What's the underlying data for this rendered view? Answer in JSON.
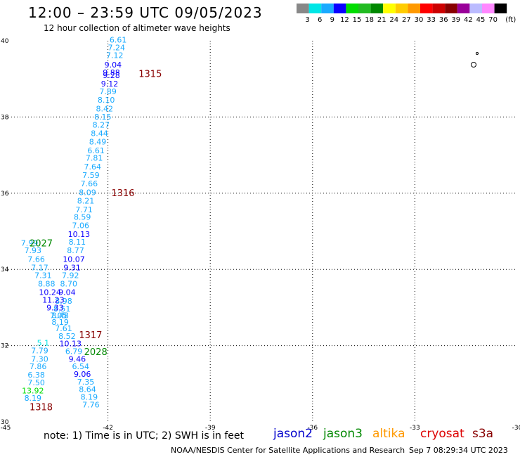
{
  "header": {
    "title": "12:00 – 23:59 UTC 09/05/2023",
    "subtitle": "12 hour collection of altimeter wave heights"
  },
  "colorbar": {
    "labels": [
      "3",
      "6",
      "9",
      "12",
      "15",
      "18",
      "21",
      "24",
      "27",
      "30",
      "33",
      "36",
      "39",
      "42",
      "45",
      "70",
      "(ft)"
    ],
    "colors": [
      "#888888",
      "#00e6e6",
      "#19aaff",
      "#0a00ff",
      "#00dd00",
      "#22bb22",
      "#008800",
      "#ffff00",
      "#ffcc00",
      "#ff9900",
      "#ff0000",
      "#cc0000",
      "#880000",
      "#990099",
      "#bbbbff",
      "#ff88ff",
      "#000000"
    ]
  },
  "chart_data": {
    "type": "scatter",
    "xlim": [
      -45,
      -30
    ],
    "ylim": [
      30,
      40
    ],
    "x_ticks": [
      "-45",
      "-42",
      "-39",
      "-36",
      "-33",
      "-30"
    ],
    "y_ticks": [
      "30",
      "32",
      "34",
      "36",
      "38",
      "40"
    ],
    "grid": true,
    "track_color_scale": [
      {
        "max": 3,
        "color": "#888888"
      },
      {
        "max": 6,
        "color": "#00e6e6"
      },
      {
        "max": 9,
        "color": "#19aaff"
      },
      {
        "max": 12,
        "color": "#0a00ff"
      },
      {
        "max": 15,
        "color": "#00dd00"
      },
      {
        "max": 18,
        "color": "#22bb22"
      }
    ],
    "tracks": [
      {
        "label": "1315",
        "label_lon": -41.1,
        "label_lat": 39.05,
        "label_color": "#880000",
        "points": [
          {
            "lon": -41.7,
            "lat": 39.95,
            "v": "6.61"
          },
          {
            "lon": -41.75,
            "lat": 39.75,
            "v": "7.24"
          },
          {
            "lon": -41.8,
            "lat": 39.55,
            "v": "7.12"
          },
          {
            "lon": -41.85,
            "lat": 39.3,
            "v": "9.04"
          },
          {
            "lon": -41.9,
            "lat": 39.1,
            "v": "9.88"
          },
          {
            "lon": -41.9,
            "lat": 39.02,
            "v": "9.28"
          },
          {
            "lon": -41.95,
            "lat": 38.8,
            "v": "9.12"
          },
          {
            "lon": -42.0,
            "lat": 38.6,
            "v": "7.89"
          },
          {
            "lon": -42.05,
            "lat": 38.38,
            "v": "8.10"
          },
          {
            "lon": -42.1,
            "lat": 38.15,
            "v": "8.42"
          },
          {
            "lon": -42.15,
            "lat": 37.93,
            "v": "8.15"
          },
          {
            "lon": -42.2,
            "lat": 37.72,
            "v": "8.27"
          },
          {
            "lon": -42.25,
            "lat": 37.5,
            "v": "8.44"
          },
          {
            "lon": -42.3,
            "lat": 37.28,
            "v": "8.49"
          },
          {
            "lon": -42.35,
            "lat": 37.05,
            "v": "6.61"
          },
          {
            "lon": -42.4,
            "lat": 36.85,
            "v": "7.81"
          },
          {
            "lon": -42.45,
            "lat": 36.62,
            "v": "7.64"
          },
          {
            "lon": -42.5,
            "lat": 36.4,
            "v": "7.59"
          },
          {
            "lon": -42.55,
            "lat": 36.18,
            "v": "7.66"
          }
        ]
      },
      {
        "label": "1316",
        "label_lon": -41.9,
        "label_lat": 35.92,
        "label_color": "#880000",
        "points": [
          {
            "lon": -42.6,
            "lat": 35.95,
            "v": "8.09"
          },
          {
            "lon": -42.65,
            "lat": 35.73,
            "v": "8.21"
          },
          {
            "lon": -42.7,
            "lat": 35.5,
            "v": "7.71"
          },
          {
            "lon": -42.75,
            "lat": 35.3,
            "v": "8.59"
          },
          {
            "lon": -42.8,
            "lat": 35.08,
            "v": "7.06"
          },
          {
            "lon": -42.85,
            "lat": 34.85,
            "v": "10.13"
          },
          {
            "lon": -42.9,
            "lat": 34.65,
            "v": "8.11"
          },
          {
            "lon": -42.95,
            "lat": 34.43,
            "v": "8.77"
          },
          {
            "lon": -43.0,
            "lat": 34.2,
            "v": "10.07"
          },
          {
            "lon": -43.05,
            "lat": 33.98,
            "v": "9.31"
          },
          {
            "lon": -43.1,
            "lat": 33.77,
            "v": "7.92"
          },
          {
            "lon": -43.15,
            "lat": 33.55,
            "v": "8.70"
          },
          {
            "lon": -43.2,
            "lat": 33.33,
            "v": "9.04"
          },
          {
            "lon": -43.3,
            "lat": 33.1,
            "v": "8.98"
          },
          {
            "lon": -43.35,
            "lat": 32.9,
            "v": "8.51"
          },
          {
            "lon": -43.4,
            "lat": 32.72,
            "v": "8.48"
          }
        ]
      },
      {
        "label": "2027",
        "label_lon": -44.3,
        "label_lat": 34.6,
        "label_color": "#008800",
        "points": [
          {
            "lon": -44.3,
            "lat": 34.62,
            "v": "7.99"
          },
          {
            "lon": -44.2,
            "lat": 34.43,
            "v": "7.93"
          },
          {
            "lon": -44.1,
            "lat": 34.2,
            "v": "7.66"
          },
          {
            "lon": -44.0,
            "lat": 33.98,
            "v": "7.17"
          },
          {
            "lon": -43.9,
            "lat": 33.77,
            "v": "7.31"
          },
          {
            "lon": -43.8,
            "lat": 33.55,
            "v": "8.88"
          },
          {
            "lon": -43.7,
            "lat": 33.33,
            "v": "10.24"
          },
          {
            "lon": -43.6,
            "lat": 33.13,
            "v": "11.23"
          },
          {
            "lon": -43.55,
            "lat": 32.92,
            "v": "9.33"
          },
          {
            "lon": -43.45,
            "lat": 32.72,
            "v": "7.05"
          },
          {
            "lon": -43.4,
            "lat": 32.55,
            "v": "8.19"
          },
          {
            "lon": -43.3,
            "lat": 32.38,
            "v": "7.61"
          },
          {
            "lon": -43.2,
            "lat": 32.18,
            "v": "8.52"
          },
          {
            "lon": -43.1,
            "lat": 31.98,
            "v": "10.13"
          },
          {
            "lon": -43.0,
            "lat": 31.78,
            "v": "6.79"
          },
          {
            "lon": -42.9,
            "lat": 31.58,
            "v": "9.46"
          },
          {
            "lon": -42.8,
            "lat": 31.38,
            "v": "6.54"
          },
          {
            "lon": -42.75,
            "lat": 31.18,
            "v": "9.06"
          },
          {
            "lon": -42.65,
            "lat": 30.98,
            "v": "7.35"
          },
          {
            "lon": -42.6,
            "lat": 30.78,
            "v": "8.64"
          },
          {
            "lon": -42.55,
            "lat": 30.58,
            "v": "8.19"
          },
          {
            "lon": -42.5,
            "lat": 30.38,
            "v": "7.76"
          }
        ]
      },
      {
        "label": "1317",
        "label_lon": -42.85,
        "label_lat": 32.2,
        "label_color": "#880000",
        "points": []
      },
      {
        "label": "2028",
        "label_lon": -42.7,
        "label_lat": 31.75,
        "label_color": "#008800",
        "points": []
      },
      {
        "label": "1318",
        "label_lon": -44.3,
        "label_lat": 30.3,
        "label_color": "#880000",
        "points": [
          {
            "lon": -43.9,
            "lat": 32.0,
            "v": "5.1"
          },
          {
            "lon": -44.0,
            "lat": 31.8,
            "v": "7.79"
          },
          {
            "lon": -44.0,
            "lat": 31.58,
            "v": "7.30"
          },
          {
            "lon": -44.05,
            "lat": 31.38,
            "v": "7.86"
          },
          {
            "lon": -44.1,
            "lat": 31.16,
            "v": "6.38"
          },
          {
            "lon": -44.1,
            "lat": 30.96,
            "v": "7.50"
          },
          {
            "lon": -44.2,
            "lat": 30.75,
            "v": "13.92"
          },
          {
            "lon": -44.2,
            "lat": 30.55,
            "v": "8.19"
          }
        ]
      }
    ]
  },
  "footer": {
    "note": "note:  1) Time is in UTC;  2) SWH is in feet",
    "sats": [
      {
        "name": "jason2",
        "color": "#0000cc"
      },
      {
        "name": "jason3",
        "color": "#008800"
      },
      {
        "name": "altika",
        "color": "#ff9900"
      },
      {
        "name": "cryosat",
        "color": "#dd0000"
      },
      {
        "name": "s3a",
        "color": "#880000"
      }
    ],
    "credit": "NOAA/NESDIS Center for Satellite Applications and Research",
    "timestamp": "Sep  7 08:29:34 UTC 2023"
  }
}
